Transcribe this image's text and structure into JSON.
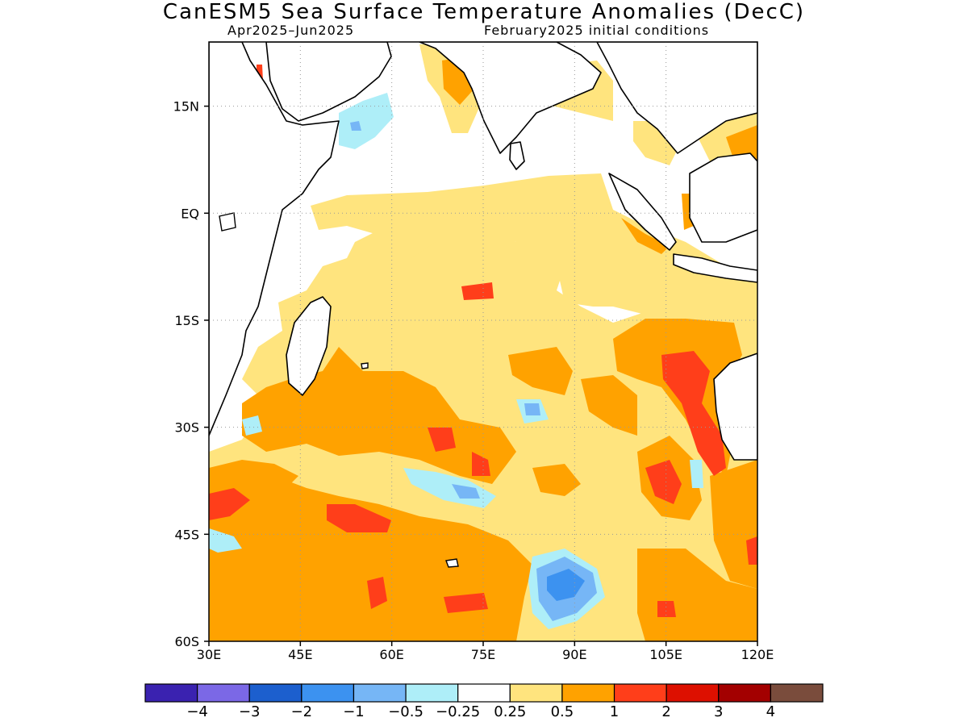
{
  "title": "CanESM5 Sea Surface Temperature Anomalies (DecC)",
  "subtitle_left": "Apr2025–Jun2025",
  "subtitle_right": "February2025 initial conditions",
  "map": {
    "lon_range": [
      30,
      120
    ],
    "lat_range": [
      -60,
      24
    ],
    "lat_ticks": [
      {
        "value": 15,
        "label": "15N"
      },
      {
        "value": 0,
        "label": "EQ"
      },
      {
        "value": -15,
        "label": "15S"
      },
      {
        "value": -30,
        "label": "30S"
      },
      {
        "value": -45,
        "label": "45S"
      },
      {
        "value": -60,
        "label": "60S"
      }
    ],
    "lon_ticks": [
      {
        "value": 30,
        "label": "30E"
      },
      {
        "value": 45,
        "label": "45E"
      },
      {
        "value": 60,
        "label": "60E"
      },
      {
        "value": 75,
        "label": "75E"
      },
      {
        "value": 90,
        "label": "90E"
      },
      {
        "value": 105,
        "label": "105E"
      },
      {
        "value": 120,
        "label": "120E"
      }
    ],
    "grid": true,
    "colors": {
      "background_ocean": "#ffffff",
      "coastline": "#000000",
      "grid": "#9a9a9a"
    }
  },
  "colorbar": {
    "colors": [
      "#3a22b0",
      "#7b68e6",
      "#1c5fce",
      "#3c92f0",
      "#76b6f6",
      "#aeeef8",
      "#ffffff",
      "#ffe47e",
      "#ffa200",
      "#ff3e1a",
      "#dd1000",
      "#a30000",
      "#7a4c3c"
    ],
    "labels": [
      "−4",
      "−3",
      "−2",
      "−1",
      "−0.5",
      "−0.25",
      "0.25",
      "0.5",
      "1",
      "2",
      "3",
      "4"
    ]
  },
  "legend_levels": [
    {
      "name": "pale-yellow",
      "color": "#ffe47e"
    },
    {
      "name": "orange",
      "color": "#ffa200"
    },
    {
      "name": "red-orange",
      "color": "#ff3e1a"
    },
    {
      "name": "pale-blue",
      "color": "#aeeef8"
    },
    {
      "name": "light-blue",
      "color": "#76b6f6"
    },
    {
      "name": "medium-blue",
      "color": "#3c92f0"
    }
  ]
}
